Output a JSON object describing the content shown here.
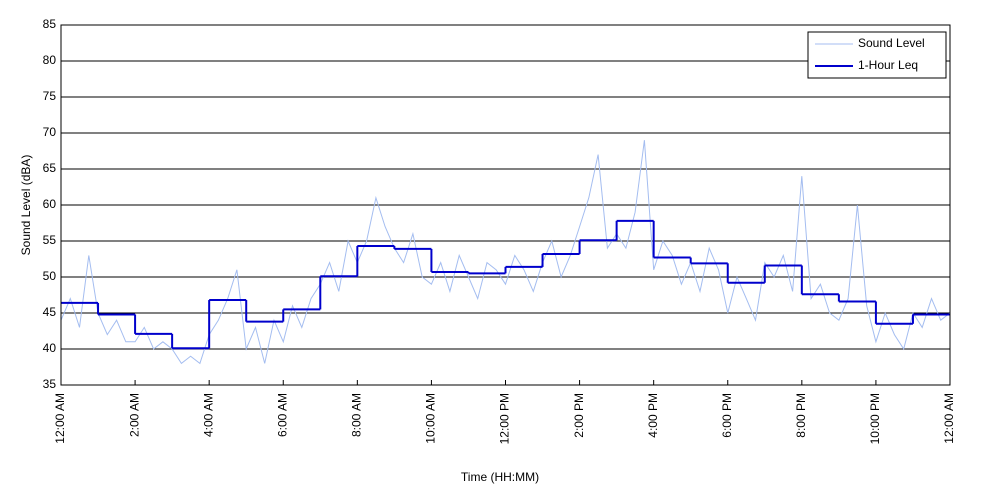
{
  "chart_data": {
    "type": "line",
    "x_label": "Time (HH:MM)",
    "y_label": "Sound Level (dBA)",
    "xlim": [
      0,
      24
    ],
    "ylim": [
      35,
      85
    ],
    "yticks": [
      35,
      40,
      45,
      50,
      55,
      60,
      65,
      70,
      75,
      80,
      85
    ],
    "xticks": [
      {
        "value": 0,
        "label": "12:00 AM"
      },
      {
        "value": 2,
        "label": "2:00 AM"
      },
      {
        "value": 4,
        "label": "4:00 AM"
      },
      {
        "value": 6,
        "label": "6:00 AM"
      },
      {
        "value": 8,
        "label": "8:00 AM"
      },
      {
        "value": 10,
        "label": "10:00 AM"
      },
      {
        "value": 12,
        "label": "12:00 PM"
      },
      {
        "value": 14,
        "label": "2:00 PM"
      },
      {
        "value": 16,
        "label": "4:00 PM"
      },
      {
        "value": 18,
        "label": "6:00 PM"
      },
      {
        "value": 20,
        "label": "8:00 PM"
      },
      {
        "value": 22,
        "label": "10:00 PM"
      },
      {
        "value": 24,
        "label": "12:00 AM"
      }
    ],
    "grid": true,
    "legend": "upper right",
    "series": [
      {
        "name": "Sound Level",
        "color": "#a4bdf0",
        "drawstyle": "default",
        "x": [
          0,
          0.25,
          0.5,
          0.75,
          1,
          1.25,
          1.5,
          1.75,
          2,
          2.25,
          2.5,
          2.75,
          3,
          3.25,
          3.5,
          3.75,
          4,
          4.25,
          4.5,
          4.75,
          5,
          5.25,
          5.5,
          5.75,
          6,
          6.25,
          6.5,
          6.75,
          7,
          7.25,
          7.5,
          7.75,
          8,
          8.25,
          8.5,
          8.75,
          9,
          9.25,
          9.5,
          9.75,
          10,
          10.25,
          10.5,
          10.75,
          11,
          11.25,
          11.5,
          11.75,
          12,
          12.25,
          12.5,
          12.75,
          13,
          13.25,
          13.5,
          13.75,
          14,
          14.25,
          14.5,
          14.75,
          15,
          15.25,
          15.5,
          15.75,
          16,
          16.25,
          16.5,
          16.75,
          17,
          17.25,
          17.5,
          17.75,
          18,
          18.25,
          18.5,
          18.75,
          19,
          19.25,
          19.5,
          19.75,
          20,
          20.25,
          20.5,
          20.75,
          21,
          21.25,
          21.5,
          21.75,
          22,
          22.25,
          22.5,
          22.75,
          23,
          23.25,
          23.5,
          23.75,
          24
        ],
        "values": [
          44,
          47,
          43,
          53,
          45,
          42,
          44,
          41,
          41,
          43,
          40,
          41,
          40,
          38,
          39,
          38,
          42,
          44,
          47,
          51,
          40,
          43,
          38,
          44,
          41,
          46,
          43,
          47,
          49,
          52,
          48,
          55,
          52,
          55,
          61,
          57,
          54,
          52,
          56,
          50,
          49,
          52,
          48,
          53,
          50,
          47,
          52,
          51,
          49,
          53,
          51,
          48,
          52,
          55,
          50,
          53,
          57,
          61,
          67,
          54,
          56,
          54,
          59,
          69,
          51,
          55,
          53,
          49,
          52,
          48,
          54,
          51,
          45,
          50,
          47,
          44,
          52,
          50,
          53,
          48,
          64,
          47,
          49,
          45,
          44,
          47,
          60,
          46,
          41,
          45,
          42,
          40,
          45,
          43,
          47,
          44,
          45
        ]
      },
      {
        "name": "1-Hour Leq",
        "color": "#0000cc",
        "drawstyle": "steps-post",
        "x": [
          0,
          1,
          2,
          3,
          4,
          5,
          6,
          7,
          8,
          9,
          10,
          11,
          12,
          13,
          14,
          15,
          16,
          17,
          18,
          19,
          20,
          21,
          22,
          23
        ],
        "values": [
          46.4,
          44.8,
          42.1,
          40.1,
          46.8,
          43.8,
          45.5,
          50.1,
          54.3,
          53.9,
          50.7,
          50.5,
          51.4,
          53.2,
          55.1,
          57.8,
          52.7,
          51.9,
          49.2,
          51.6,
          47.6,
          46.6,
          43.5,
          44.8
        ]
      }
    ]
  }
}
